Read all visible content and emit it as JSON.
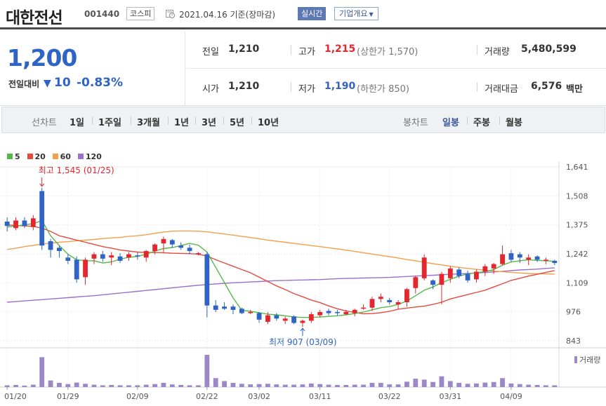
{
  "header": {
    "name": "대한전선",
    "code": "001440",
    "market": "코스피",
    "date_text": "2021.04.16  기준(장마감)",
    "realtime_label": "실시간",
    "company_label": "기업개요"
  },
  "quote": {
    "price": "1,200",
    "change_label": "전일대비",
    "change_value": "10",
    "change_pct": "-0.83%",
    "prev_close": {
      "label": "전일",
      "value": "1,210"
    },
    "open": {
      "label": "시가",
      "value": "1,210"
    },
    "high": {
      "label": "고가",
      "value": "1,215",
      "sub": "(상한가 1,570)"
    },
    "low": {
      "label": "저가",
      "value": "1,190",
      "sub": "(하한가 850)"
    },
    "volume": {
      "label": "거래량",
      "value": "5,480,599"
    },
    "amount": {
      "label": "거래대금",
      "value": "6,576",
      "unit": "백만"
    }
  },
  "period_bar": {
    "line_chart_label": "선차트",
    "ranges": [
      "1일",
      "1주일",
      "3개월",
      "1년",
      "3년",
      "5년",
      "10년"
    ],
    "candle_chart_label": "봉차트",
    "candle_types": [
      "일봉",
      "주봉",
      "월봉"
    ],
    "active_candle": "일봉"
  },
  "colors": {
    "up": "#e4262f",
    "down": "#2f63c5",
    "ma5": "#55b848",
    "ma20": "#e64a3e",
    "ma60": "#f2a04c",
    "ma120": "#9a70cc",
    "volume": "#9c87c9"
  },
  "chart_data": {
    "type": "candlestick",
    "legend": [
      {
        "name": "5",
        "color": "#55b848"
      },
      {
        "name": "20",
        "color": "#e64a3e"
      },
      {
        "name": "60",
        "color": "#f2a04c"
      },
      {
        "name": "120",
        "color": "#9a70cc"
      }
    ],
    "y_ticks": [
      "1,641",
      "1,508",
      "1,375",
      "1,242",
      "1,109",
      "976",
      "843"
    ],
    "ylim": [
      843,
      1641
    ],
    "x_ticks": [
      "01/20",
      "01/29",
      "02/09",
      "02/22",
      "03/02",
      "03/11",
      "03/22",
      "03/31",
      "04/09"
    ],
    "annotations": {
      "high": "최고 1,545 (01/25)",
      "low": "최저 907 (03/09)"
    },
    "volume_label": "거래량",
    "candles": [
      {
        "o": 1390,
        "h": 1410,
        "l": 1345,
        "c": 1370
      },
      {
        "o": 1360,
        "h": 1410,
        "l": 1350,
        "c": 1395
      },
      {
        "o": 1395,
        "h": 1410,
        "l": 1360,
        "c": 1370
      },
      {
        "o": 1365,
        "h": 1420,
        "l": 1350,
        "c": 1405
      },
      {
        "o": 1530,
        "h": 1545,
        "l": 1260,
        "c": 1280
      },
      {
        "o": 1300,
        "h": 1310,
        "l": 1225,
        "c": 1260
      },
      {
        "o": 1270,
        "h": 1280,
        "l": 1225,
        "c": 1255
      },
      {
        "o": 1225,
        "h": 1240,
        "l": 1195,
        "c": 1210
      },
      {
        "o": 1215,
        "h": 1230,
        "l": 1110,
        "c": 1125
      },
      {
        "o": 1135,
        "h": 1225,
        "l": 1100,
        "c": 1215
      },
      {
        "o": 1220,
        "h": 1250,
        "l": 1195,
        "c": 1240
      },
      {
        "o": 1240,
        "h": 1255,
        "l": 1205,
        "c": 1220
      },
      {
        "o": 1225,
        "h": 1250,
        "l": 1190,
        "c": 1235
      },
      {
        "o": 1230,
        "h": 1245,
        "l": 1200,
        "c": 1210
      },
      {
        "o": 1225,
        "h": 1250,
        "l": 1210,
        "c": 1240
      },
      {
        "o": 1235,
        "h": 1250,
        "l": 1215,
        "c": 1230
      },
      {
        "o": 1225,
        "h": 1260,
        "l": 1205,
        "c": 1255
      },
      {
        "o": 1255,
        "h": 1290,
        "l": 1240,
        "c": 1285
      },
      {
        "o": 1290,
        "h": 1320,
        "l": 1250,
        "c": 1310
      },
      {
        "o": 1305,
        "h": 1310,
        "l": 1270,
        "c": 1285
      },
      {
        "o": 1280,
        "h": 1295,
        "l": 1260,
        "c": 1270
      },
      {
        "o": 1270,
        "h": 1285,
        "l": 1240,
        "c": 1255
      },
      {
        "o": 1245,
        "h": 1250,
        "l": 1235,
        "c": 1245
      },
      {
        "o": 1240,
        "h": 1250,
        "l": 950,
        "c": 1005
      },
      {
        "o": 1005,
        "h": 1030,
        "l": 975,
        "c": 985
      },
      {
        "o": 1000,
        "h": 1020,
        "l": 985,
        "c": 990
      },
      {
        "o": 1000,
        "h": 1010,
        "l": 965,
        "c": 985
      },
      {
        "o": 990,
        "h": 995,
        "l": 965,
        "c": 970
      },
      {
        "o": 975,
        "h": 985,
        "l": 965,
        "c": 975
      },
      {
        "o": 970,
        "h": 975,
        "l": 925,
        "c": 940
      },
      {
        "o": 930,
        "h": 975,
        "l": 920,
        "c": 960
      },
      {
        "o": 960,
        "h": 970,
        "l": 935,
        "c": 945
      },
      {
        "o": 935,
        "h": 955,
        "l": 920,
        "c": 945
      },
      {
        "o": 955,
        "h": 960,
        "l": 920,
        "c": 925
      },
      {
        "o": 925,
        "h": 940,
        "l": 907,
        "c": 935
      },
      {
        "o": 935,
        "h": 975,
        "l": 925,
        "c": 965
      },
      {
        "o": 960,
        "h": 985,
        "l": 950,
        "c": 975
      },
      {
        "o": 980,
        "h": 990,
        "l": 960,
        "c": 970
      },
      {
        "o": 975,
        "h": 985,
        "l": 960,
        "c": 970
      },
      {
        "o": 965,
        "h": 985,
        "l": 960,
        "c": 975
      },
      {
        "o": 970,
        "h": 990,
        "l": 955,
        "c": 985
      },
      {
        "o": 995,
        "h": 1010,
        "l": 985,
        "c": 995
      },
      {
        "o": 995,
        "h": 1045,
        "l": 980,
        "c": 1035
      },
      {
        "o": 1035,
        "h": 1060,
        "l": 1020,
        "c": 1045
      },
      {
        "o": 1030,
        "h": 1040,
        "l": 1010,
        "c": 1020
      },
      {
        "o": 1010,
        "h": 1030,
        "l": 990,
        "c": 1020
      },
      {
        "o": 1020,
        "h": 1085,
        "l": 1000,
        "c": 1080
      },
      {
        "o": 1085,
        "h": 1140,
        "l": 1060,
        "c": 1135
      },
      {
        "o": 1130,
        "h": 1240,
        "l": 1120,
        "c": 1225
      },
      {
        "o": 1120,
        "h": 1125,
        "l": 1080,
        "c": 1100
      },
      {
        "o": 1100,
        "h": 1160,
        "l": 1010,
        "c": 1150
      },
      {
        "o": 1130,
        "h": 1185,
        "l": 1110,
        "c": 1175
      },
      {
        "o": 1170,
        "h": 1180,
        "l": 1130,
        "c": 1140
      },
      {
        "o": 1150,
        "h": 1165,
        "l": 1110,
        "c": 1120
      },
      {
        "o": 1125,
        "h": 1170,
        "l": 1110,
        "c": 1160
      },
      {
        "o": 1160,
        "h": 1195,
        "l": 1140,
        "c": 1185
      },
      {
        "o": 1175,
        "h": 1200,
        "l": 1150,
        "c": 1195
      },
      {
        "o": 1195,
        "h": 1280,
        "l": 1190,
        "c": 1240
      },
      {
        "o": 1245,
        "h": 1260,
        "l": 1205,
        "c": 1215
      },
      {
        "o": 1240,
        "h": 1250,
        "l": 1200,
        "c": 1225
      },
      {
        "o": 1215,
        "h": 1240,
        "l": 1190,
        "c": 1225
      },
      {
        "o": 1230,
        "h": 1235,
        "l": 1205,
        "c": 1215
      },
      {
        "o": 1210,
        "h": 1225,
        "l": 1195,
        "c": 1215
      },
      {
        "o": 1210,
        "h": 1215,
        "l": 1190,
        "c": 1200
      }
    ],
    "volumes": [
      6,
      7,
      5,
      8,
      100,
      22,
      14,
      10,
      15,
      11,
      8,
      6,
      7,
      6,
      6,
      6,
      8,
      10,
      14,
      9,
      7,
      6,
      6,
      108,
      30,
      20,
      14,
      11,
      9,
      10,
      11,
      9,
      8,
      8,
      9,
      12,
      10,
      8,
      7,
      7,
      8,
      8,
      14,
      14,
      9,
      9,
      18,
      28,
      25,
      17,
      36,
      20,
      14,
      11,
      12,
      15,
      17,
      30,
      12,
      10,
      8,
      7,
      6,
      6
    ],
    "ma5": [
      1365,
      1370,
      1375,
      1380,
      1395,
      1325,
      1280,
      1240,
      1215,
      1210,
      1210,
      1200,
      1205,
      1218,
      1226,
      1230,
      1240,
      1255,
      1266,
      1271,
      1280,
      1290,
      1282,
      1250,
      1180,
      1110,
      1040,
      983,
      978,
      972,
      965,
      962,
      958,
      952,
      950,
      950,
      952,
      955,
      958,
      962,
      968,
      975,
      985,
      995,
      1000,
      1010,
      1025,
      1050,
      1075,
      1090,
      1110,
      1125,
      1140,
      1150,
      1155,
      1160,
      1170,
      1190,
      1205,
      1210,
      1215,
      1212,
      1210,
      1208
    ],
    "ma20": [
      1375,
      1372,
      1370,
      1368,
      1360,
      1345,
      1325,
      1315,
      1305,
      1295,
      1285,
      1275,
      1268,
      1260,
      1255,
      1250,
      1248,
      1248,
      1247,
      1245,
      1244,
      1243,
      1240,
      1232,
      1215,
      1200,
      1185,
      1170,
      1155,
      1135,
      1115,
      1095,
      1078,
      1060,
      1045,
      1030,
      1018,
      1003,
      990,
      980,
      973,
      967,
      968,
      972,
      978,
      988,
      993,
      998,
      1002,
      1010,
      1020,
      1035,
      1045,
      1055,
      1065,
      1075,
      1090,
      1105,
      1120,
      1130,
      1140,
      1148,
      1157,
      1165
    ],
    "ma60": [
      1262,
      1268,
      1275,
      1281,
      1287,
      1291,
      1295,
      1298,
      1302,
      1305,
      1308,
      1312,
      1315,
      1318,
      1322,
      1325,
      1330,
      1336,
      1342,
      1346,
      1347,
      1347,
      1346,
      1343,
      1338,
      1333,
      1328,
      1322,
      1317,
      1311,
      1305,
      1300,
      1295,
      1290,
      1285,
      1280,
      1275,
      1270,
      1265,
      1259,
      1253,
      1247,
      1241,
      1235,
      1229,
      1223,
      1216,
      1210,
      1203,
      1197,
      1191,
      1185,
      1180,
      1175,
      1171,
      1167,
      1163,
      1160,
      1157,
      1154,
      1152,
      1151,
      1150,
      1149
    ],
    "ma120": [
      1020,
      1023,
      1026,
      1029,
      1032,
      1035,
      1038,
      1041,
      1044,
      1047,
      1050,
      1054,
      1058,
      1062,
      1066,
      1070,
      1074,
      1078,
      1082,
      1086,
      1090,
      1094,
      1098,
      1101,
      1104,
      1107,
      1109,
      1111,
      1113,
      1115,
      1117,
      1119,
      1120,
      1121,
      1122,
      1123,
      1124,
      1126,
      1128,
      1129,
      1130,
      1131,
      1132,
      1133,
      1134,
      1136,
      1138,
      1140,
      1142,
      1144,
      1146,
      1148,
      1150,
      1152,
      1154,
      1156,
      1159,
      1162,
      1165,
      1168,
      1170,
      1172,
      1175,
      1178
    ]
  }
}
